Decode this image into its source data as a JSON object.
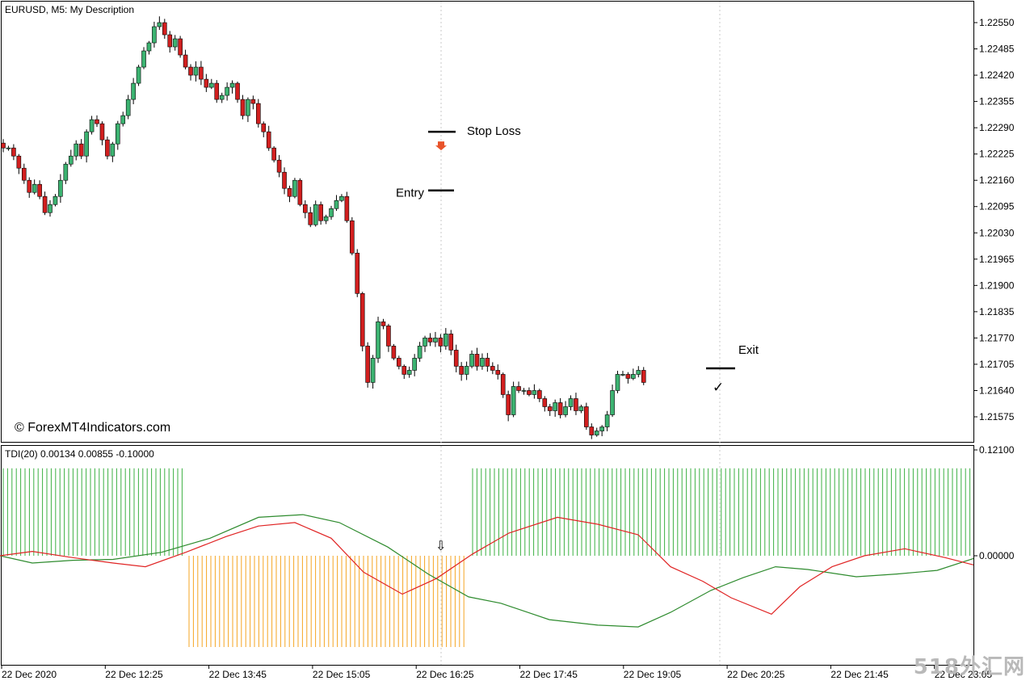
{
  "chart_title": "EURUSD, M5:  My Description",
  "copyright": "© ForexMT4Indicators.com",
  "watermark": "518外汇网",
  "indicator_label": "TDI(20) 0.00134 0.00855 -0.10000",
  "annotations": {
    "stop_loss": "Stop Loss",
    "entry": "Entry",
    "exit": "Exit",
    "exit_mark": "✓",
    "signal_arrow": "⇩"
  },
  "colors": {
    "bull": "#3cb371",
    "bear": "#d21f1f",
    "tdi_green": "#2e8b2e",
    "tdi_red": "#e02424",
    "hist_positive": "#3cb043",
    "hist_negative": "#f5a623",
    "entry_arrow": "#e8532a"
  },
  "chart_data": [
    {
      "type": "candlestick",
      "symbol": "EURUSD",
      "timeframe": "M5",
      "y_ticks": [
        "1.22550",
        "1.22485",
        "1.22420",
        "1.22355",
        "1.22290",
        "1.22225",
        "1.22160",
        "1.22095",
        "1.22030",
        "1.21965",
        "1.21900",
        "1.21835",
        "1.21770",
        "1.21705",
        "1.21640",
        "1.21575"
      ],
      "ylim": [
        1.2154,
        1.2258
      ],
      "x_ticks": [
        "22 Dec 2020",
        "22 Dec 12:25",
        "22 Dec 13:45",
        "22 Dec 15:05",
        "22 Dec 16:25",
        "22 Dec 17:45",
        "22 Dec 19:05",
        "22 Dec 20:25",
        "22 Dec 21:45",
        "22 Dec 23:05"
      ],
      "levels": {
        "stop_loss": 1.2228,
        "entry": 1.22135,
        "exit": 1.21695
      },
      "close_path": [
        1.2224,
        1.2224,
        1.2222,
        1.2219,
        1.2216,
        1.2213,
        1.2215,
        1.2212,
        1.2208,
        1.221,
        1.2212,
        1.2216,
        1.222,
        1.2222,
        1.2225,
        1.2222,
        1.2228,
        1.2231,
        1.223,
        1.2226,
        1.2222,
        1.2225,
        1.223,
        1.2232,
        1.2236,
        1.224,
        1.2244,
        1.2248,
        1.225,
        1.2254,
        1.2255,
        1.2252,
        1.2249,
        1.2251,
        1.2247,
        1.2244,
        1.2242,
        1.2244,
        1.2241,
        1.2239,
        1.224,
        1.2236,
        1.2237,
        1.2239,
        1.224,
        1.2236,
        1.2232,
        1.2236,
        1.2235,
        1.223,
        1.2228,
        1.2224,
        1.2221,
        1.2218,
        1.2214,
        1.2212,
        1.2216,
        1.221,
        1.2208,
        1.2205,
        1.221,
        1.2206,
        1.2207,
        1.2209,
        1.2211,
        1.2212,
        1.2206,
        1.2198,
        1.2188,
        1.2175,
        1.2166,
        1.2172,
        1.2181,
        1.218,
        1.2175,
        1.2172,
        1.217,
        1.2168,
        1.2169,
        1.2172,
        1.2175,
        1.2177,
        1.2176,
        1.2177,
        1.2175,
        1.2178,
        1.2174,
        1.217,
        1.2168,
        1.217,
        1.2173,
        1.217,
        1.2172,
        1.217,
        1.2169,
        1.2168,
        1.2163,
        1.2158,
        1.2165,
        1.2164,
        1.2164,
        1.2163,
        1.2164,
        1.2162,
        1.216,
        1.2159,
        1.2161,
        1.2158,
        1.216,
        1.2162,
        1.2159,
        1.216,
        1.2155,
        1.2153,
        1.2154,
        1.2155,
        1.2158,
        1.2164,
        1.2168,
        1.2168,
        1.2167,
        1.2168,
        1.2169,
        1.2166
      ]
    },
    {
      "type": "line",
      "name": "TDI(20)",
      "y_ticks": [
        "0.12100",
        "0.00000"
      ],
      "ylim": [
        -0.1,
        0.121
      ],
      "hist_cap_positive": 0.1,
      "hist_cap_negative": -0.1,
      "green_path": [
        [
          0,
          0.0
        ],
        [
          40,
          -0.008
        ],
        [
          90,
          -0.005
        ],
        [
          140,
          -0.004
        ],
        [
          200,
          0.004
        ],
        [
          260,
          0.02
        ],
        [
          320,
          0.044
        ],
        [
          375,
          0.047
        ],
        [
          420,
          0.038
        ],
        [
          480,
          0.01
        ],
        [
          530,
          -0.02
        ],
        [
          580,
          -0.045
        ],
        [
          620,
          -0.052
        ],
        [
          680,
          -0.07
        ],
        [
          740,
          -0.076
        ],
        [
          790,
          -0.078
        ],
        [
          830,
          -0.062
        ],
        [
          880,
          -0.038
        ],
        [
          920,
          -0.024
        ],
        [
          960,
          -0.012
        ],
        [
          1000,
          -0.015
        ],
        [
          1060,
          -0.023
        ],
        [
          1110,
          -0.02
        ],
        [
          1160,
          -0.016
        ],
        [
          1205,
          -0.003
        ]
      ],
      "red_path": [
        [
          0,
          0.0
        ],
        [
          40,
          0.005
        ],
        [
          90,
          -0.002
        ],
        [
          140,
          -0.008
        ],
        [
          180,
          -0.012
        ],
        [
          230,
          0.004
        ],
        [
          280,
          0.022
        ],
        [
          320,
          0.034
        ],
        [
          365,
          0.038
        ],
        [
          410,
          0.02
        ],
        [
          450,
          -0.018
        ],
        [
          498,
          -0.042
        ],
        [
          540,
          -0.025
        ],
        [
          585,
          0.002
        ],
        [
          630,
          0.026
        ],
        [
          690,
          0.044
        ],
        [
          740,
          0.036
        ],
        [
          790,
          0.024
        ],
        [
          830,
          -0.012
        ],
        [
          870,
          -0.028
        ],
        [
          905,
          -0.046
        ],
        [
          955,
          -0.064
        ],
        [
          990,
          -0.034
        ],
        [
          1030,
          -0.012
        ],
        [
          1070,
          0.0
        ],
        [
          1120,
          0.008
        ],
        [
          1170,
          -0.002
        ],
        [
          1205,
          -0.01
        ]
      ],
      "histogram": [
        {
          "x_from": 4,
          "x_to": 228,
          "value": 0.1
        },
        {
          "x_from": 234,
          "x_to": 579,
          "value": -0.1
        },
        {
          "x_from": 585,
          "x_to": 1205,
          "value": 0.1
        }
      ]
    }
  ]
}
